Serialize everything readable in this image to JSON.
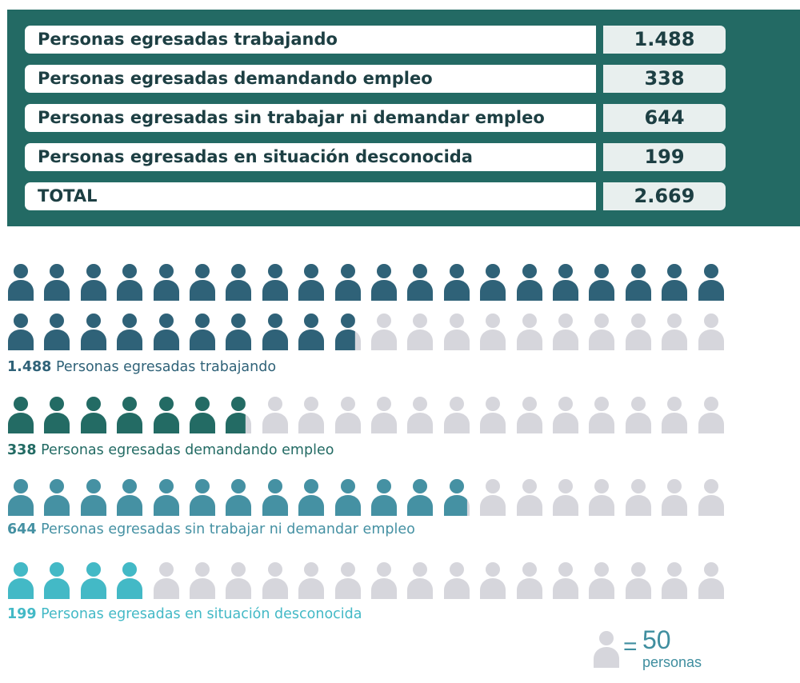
{
  "summary_table": {
    "rows": [
      {
        "label": "Personas egresadas trabajando",
        "value": "1.488"
      },
      {
        "label": "Personas egresadas demandando empleo",
        "value": "338"
      },
      {
        "label": "Personas egresadas sin trabajar ni demandar empleo",
        "value": "644"
      },
      {
        "label": "Personas egresadas en situación desconocida",
        "value": "199"
      },
      {
        "label": "TOTAL",
        "value": "2.669"
      }
    ]
  },
  "chart_data": {
    "type": "pictogram",
    "unit_value": 50,
    "icons_per_row": 20,
    "series": [
      {
        "name": "Personas egresadas trabajando",
        "value_label": "1.488",
        "value": 1488,
        "icons": 29.76,
        "color": "#2f6278"
      },
      {
        "name": "Personas egresadas demandando empleo",
        "value_label": "338",
        "value": 338,
        "icons": 6.76,
        "color": "#236b64"
      },
      {
        "name": "Personas egresadas sin trabajar ni demandar empleo",
        "value_label": "644",
        "value": 644,
        "icons": 12.88,
        "color": "#4591a3"
      },
      {
        "name": "Personas egresadas en situación desconocida",
        "value_label": "199",
        "value": 199,
        "icons": 3.98,
        "color": "#43b9c6"
      }
    ],
    "empty_color": "#d6d6dc"
  },
  "legend": {
    "equals": "=",
    "number": "50",
    "unit": "personas",
    "icon": "person-icon"
  }
}
